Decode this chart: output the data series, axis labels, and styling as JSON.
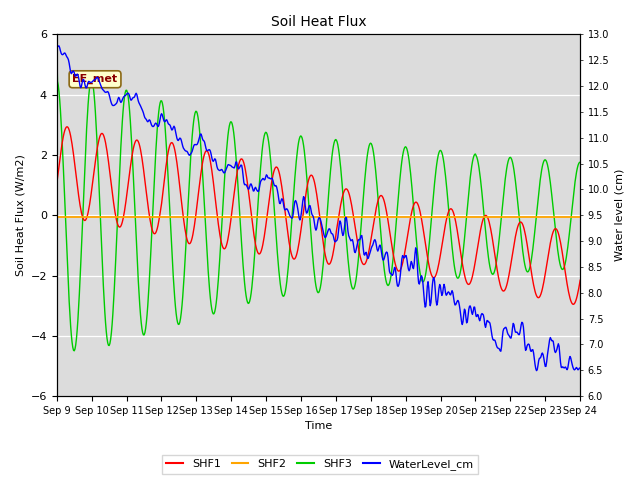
{
  "title": "Soil Heat Flux",
  "xlabel": "Time",
  "ylabel_left": "Soil Heat Flux (W/m2)",
  "ylabel_right": "Water level (cm)",
  "ylim_left": [
    -6,
    6
  ],
  "ylim_right": [
    6.0,
    13.0
  ],
  "bg_color": "#dcdcdc",
  "annotation_text": "EE_met",
  "annotation_bg": "#ffffcc",
  "annotation_edge": "#8B6914",
  "annotation_text_color": "#8B0000",
  "x_tick_labels": [
    "Sep 9",
    "Sep 10",
    "Sep 11",
    "Sep 12",
    "Sep 13",
    "Sep 14",
    "Sep 15",
    "Sep 16",
    "Sep 17",
    "Sep 18",
    "Sep 19",
    "Sep 20",
    "Sep 21",
    "Sep 22",
    "Sep 23",
    "Sep 24"
  ],
  "colors": {
    "SHF1": "#ff0000",
    "SHF2": "#ffa500",
    "SHF3": "#00cc00",
    "WaterLevel_cm": "#0000ff"
  },
  "figsize": [
    6.4,
    4.8
  ],
  "dpi": 100
}
